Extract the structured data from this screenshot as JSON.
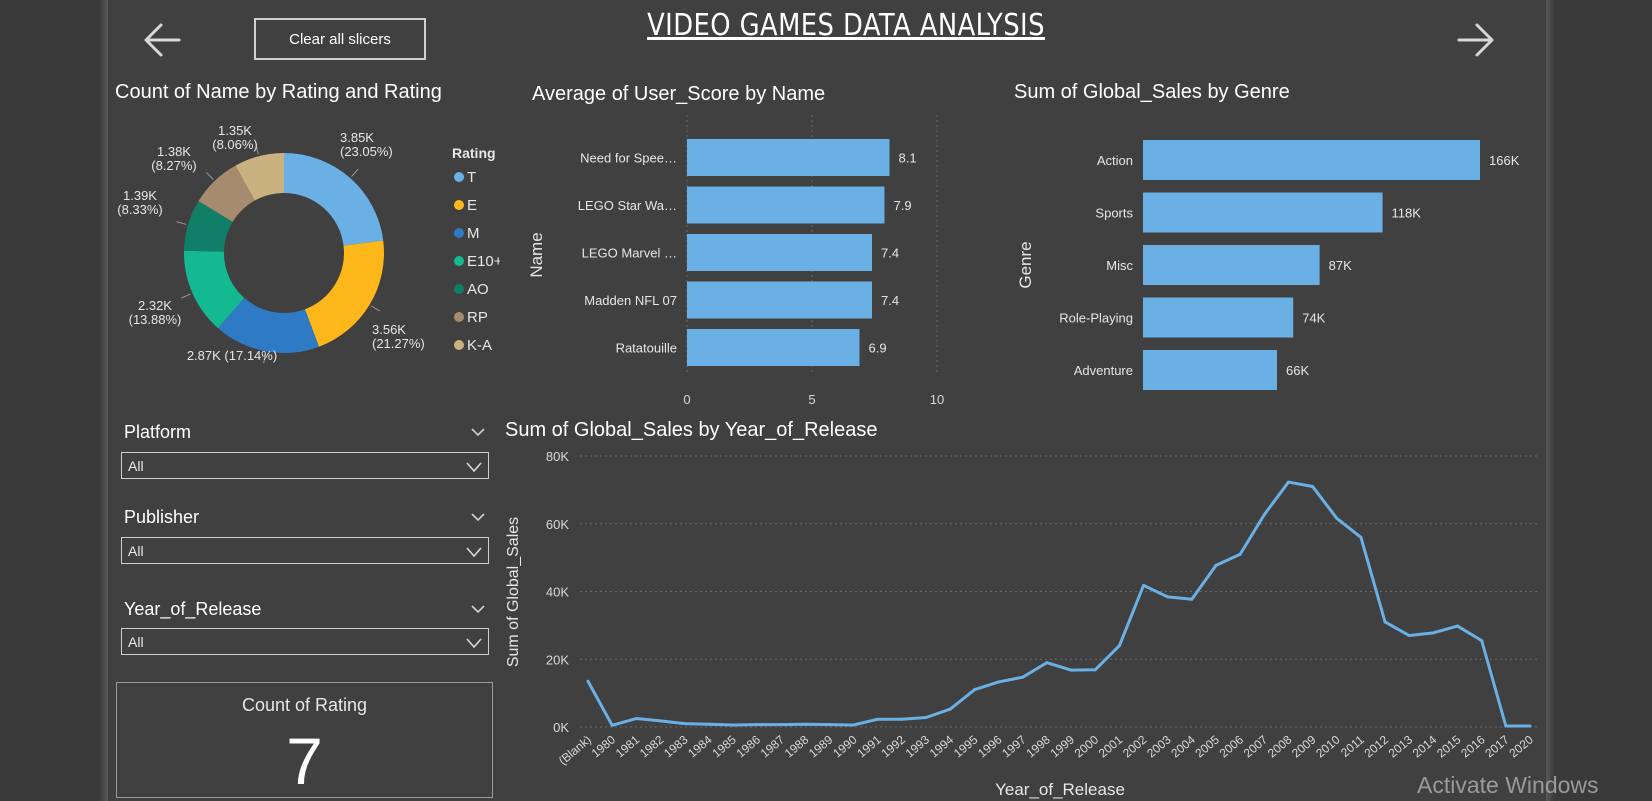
{
  "header": {
    "title": "VIDEO GAMES DATA ANALYSIS",
    "clear_button": "Clear all slicers"
  },
  "donut": {
    "title": "Count of Name by Rating and Rating",
    "legend_title": "Rating",
    "slices": [
      {
        "name": "T",
        "value": 3850,
        "label1": "3.85K",
        "label2": "(23.05%)",
        "color": "#6ab0e4"
      },
      {
        "name": "E",
        "value": 3560,
        "label1": "3.56K",
        "label2": "(21.27%)",
        "color": "#fdb71b"
      },
      {
        "name": "M",
        "value": 2870,
        "label1": "2.87K (17.14%)",
        "label2": "",
        "color": "#2f7ac5"
      },
      {
        "name": "E10+",
        "value": 2320,
        "label1": "2.32K",
        "label2": "(13.88%)",
        "color": "#14b891"
      },
      {
        "name": "AO",
        "value": 1390,
        "label1": "1.39K",
        "label2": "(8.33%)",
        "color": "#117e68"
      },
      {
        "name": "RP",
        "value": 1380,
        "label1": "1.38K",
        "label2": "(8.27%)",
        "color": "#a78b6e"
      },
      {
        "name": "K-A",
        "value": 1350,
        "label1": "1.35K",
        "label2": "(8.06%)",
        "color": "#c9b27f"
      }
    ]
  },
  "userscore": {
    "title": "Average of User_Score by Name",
    "ylabel": "Name",
    "ticks": [
      "0",
      "5",
      "10"
    ],
    "bars": [
      {
        "name": "Need for Spee…",
        "value": 8.1,
        "label": "8.1"
      },
      {
        "name": "LEGO Star Wa…",
        "value": 7.9,
        "label": "7.9"
      },
      {
        "name": "LEGO Marvel …",
        "value": 7.4,
        "label": "7.4"
      },
      {
        "name": "Madden NFL 07",
        "value": 7.4,
        "label": "7.4"
      },
      {
        "name": "Ratatouille",
        "value": 6.9,
        "label": "6.9"
      }
    ]
  },
  "genre": {
    "title": "Sum of Global_Sales by Genre",
    "ylabel": "Genre",
    "bars": [
      {
        "name": "Action",
        "value": 166,
        "label": "166K"
      },
      {
        "name": "Sports",
        "value": 118,
        "label": "118K"
      },
      {
        "name": "Misc",
        "value": 87,
        "label": "87K"
      },
      {
        "name": "Role-Playing",
        "value": 74,
        "label": "74K"
      },
      {
        "name": "Adventure",
        "value": 66,
        "label": "66K"
      }
    ]
  },
  "slicers": {
    "platform": {
      "label": "Platform",
      "value": "All"
    },
    "publisher": {
      "label": "Publisher",
      "value": "All"
    },
    "year": {
      "label": "Year_of_Release",
      "value": "All"
    }
  },
  "card": {
    "label": "Count of Rating",
    "value": "7"
  },
  "chart_data": {
    "type": "line",
    "title": "Sum of Global_Sales by Year_of_Release",
    "xlabel": "Year_of_Release",
    "ylabel": "Sum of Global_Sales",
    "ylim": [
      0,
      80000
    ],
    "yticks": [
      "0K",
      "20K",
      "40K",
      "60K",
      "80K"
    ],
    "grid": true,
    "color": "#6ab0e4",
    "x": [
      "(Blank)",
      "1980",
      "1981",
      "1982",
      "1983",
      "1984",
      "1985",
      "1986",
      "1987",
      "1988",
      "1989",
      "1990",
      "1991",
      "1992",
      "1993",
      "1994",
      "1995",
      "1996",
      "1997",
      "1998",
      "1999",
      "2000",
      "2001",
      "2002",
      "2003",
      "2004",
      "2005",
      "2006",
      "2007",
      "2008",
      "2009",
      "2010",
      "2011",
      "2012",
      "2013",
      "2014",
      "2015",
      "2016",
      "2017",
      "2020"
    ],
    "values": [
      13500,
      500,
      2500,
      1800,
      1000,
      800,
      600,
      700,
      700,
      800,
      700,
      600,
      2300,
      2300,
      2800,
      5300,
      11000,
      13300,
      14700,
      19000,
      16800,
      16900,
      24000,
      41800,
      38400,
      37700,
      47700,
      51000,
      62700,
      72300,
      71000,
      61600,
      56000,
      31000,
      27000,
      27800,
      29800,
      25500,
      300,
      300
    ]
  },
  "watermark": "Activate Windows"
}
